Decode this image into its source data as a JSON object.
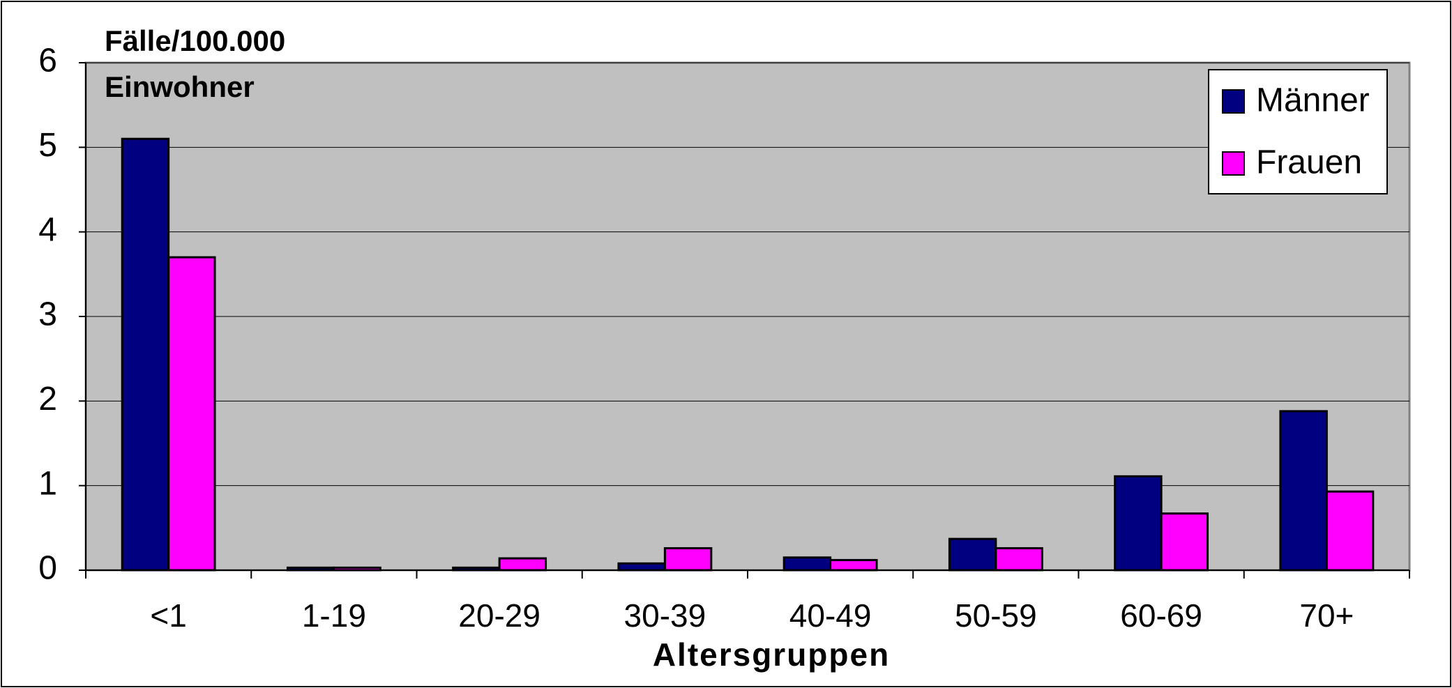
{
  "chart_data": {
    "type": "bar",
    "y_label": "Fälle/100.000 Einwohner",
    "x_label": "Altersgruppen",
    "categories": [
      "<1",
      "1-19",
      "20-29",
      "30-39",
      "40-49",
      "50-59",
      "60-69",
      "70+"
    ],
    "series": [
      {
        "name": "Männer",
        "color": "#000080",
        "values": [
          5.1,
          0.03,
          0.03,
          0.08,
          0.15,
          0.37,
          1.11,
          1.88
        ]
      },
      {
        "name": "Frauen",
        "color": "#ff00ff",
        "values": [
          3.7,
          0.03,
          0.14,
          0.26,
          0.12,
          0.26,
          0.67,
          0.93
        ]
      }
    ],
    "ylim": [
      0,
      6
    ],
    "yticks": [
      0,
      1,
      2,
      3,
      4,
      5,
      6
    ],
    "grid": true,
    "legend": "upper right",
    "plot_background": "#c0c0c0"
  }
}
